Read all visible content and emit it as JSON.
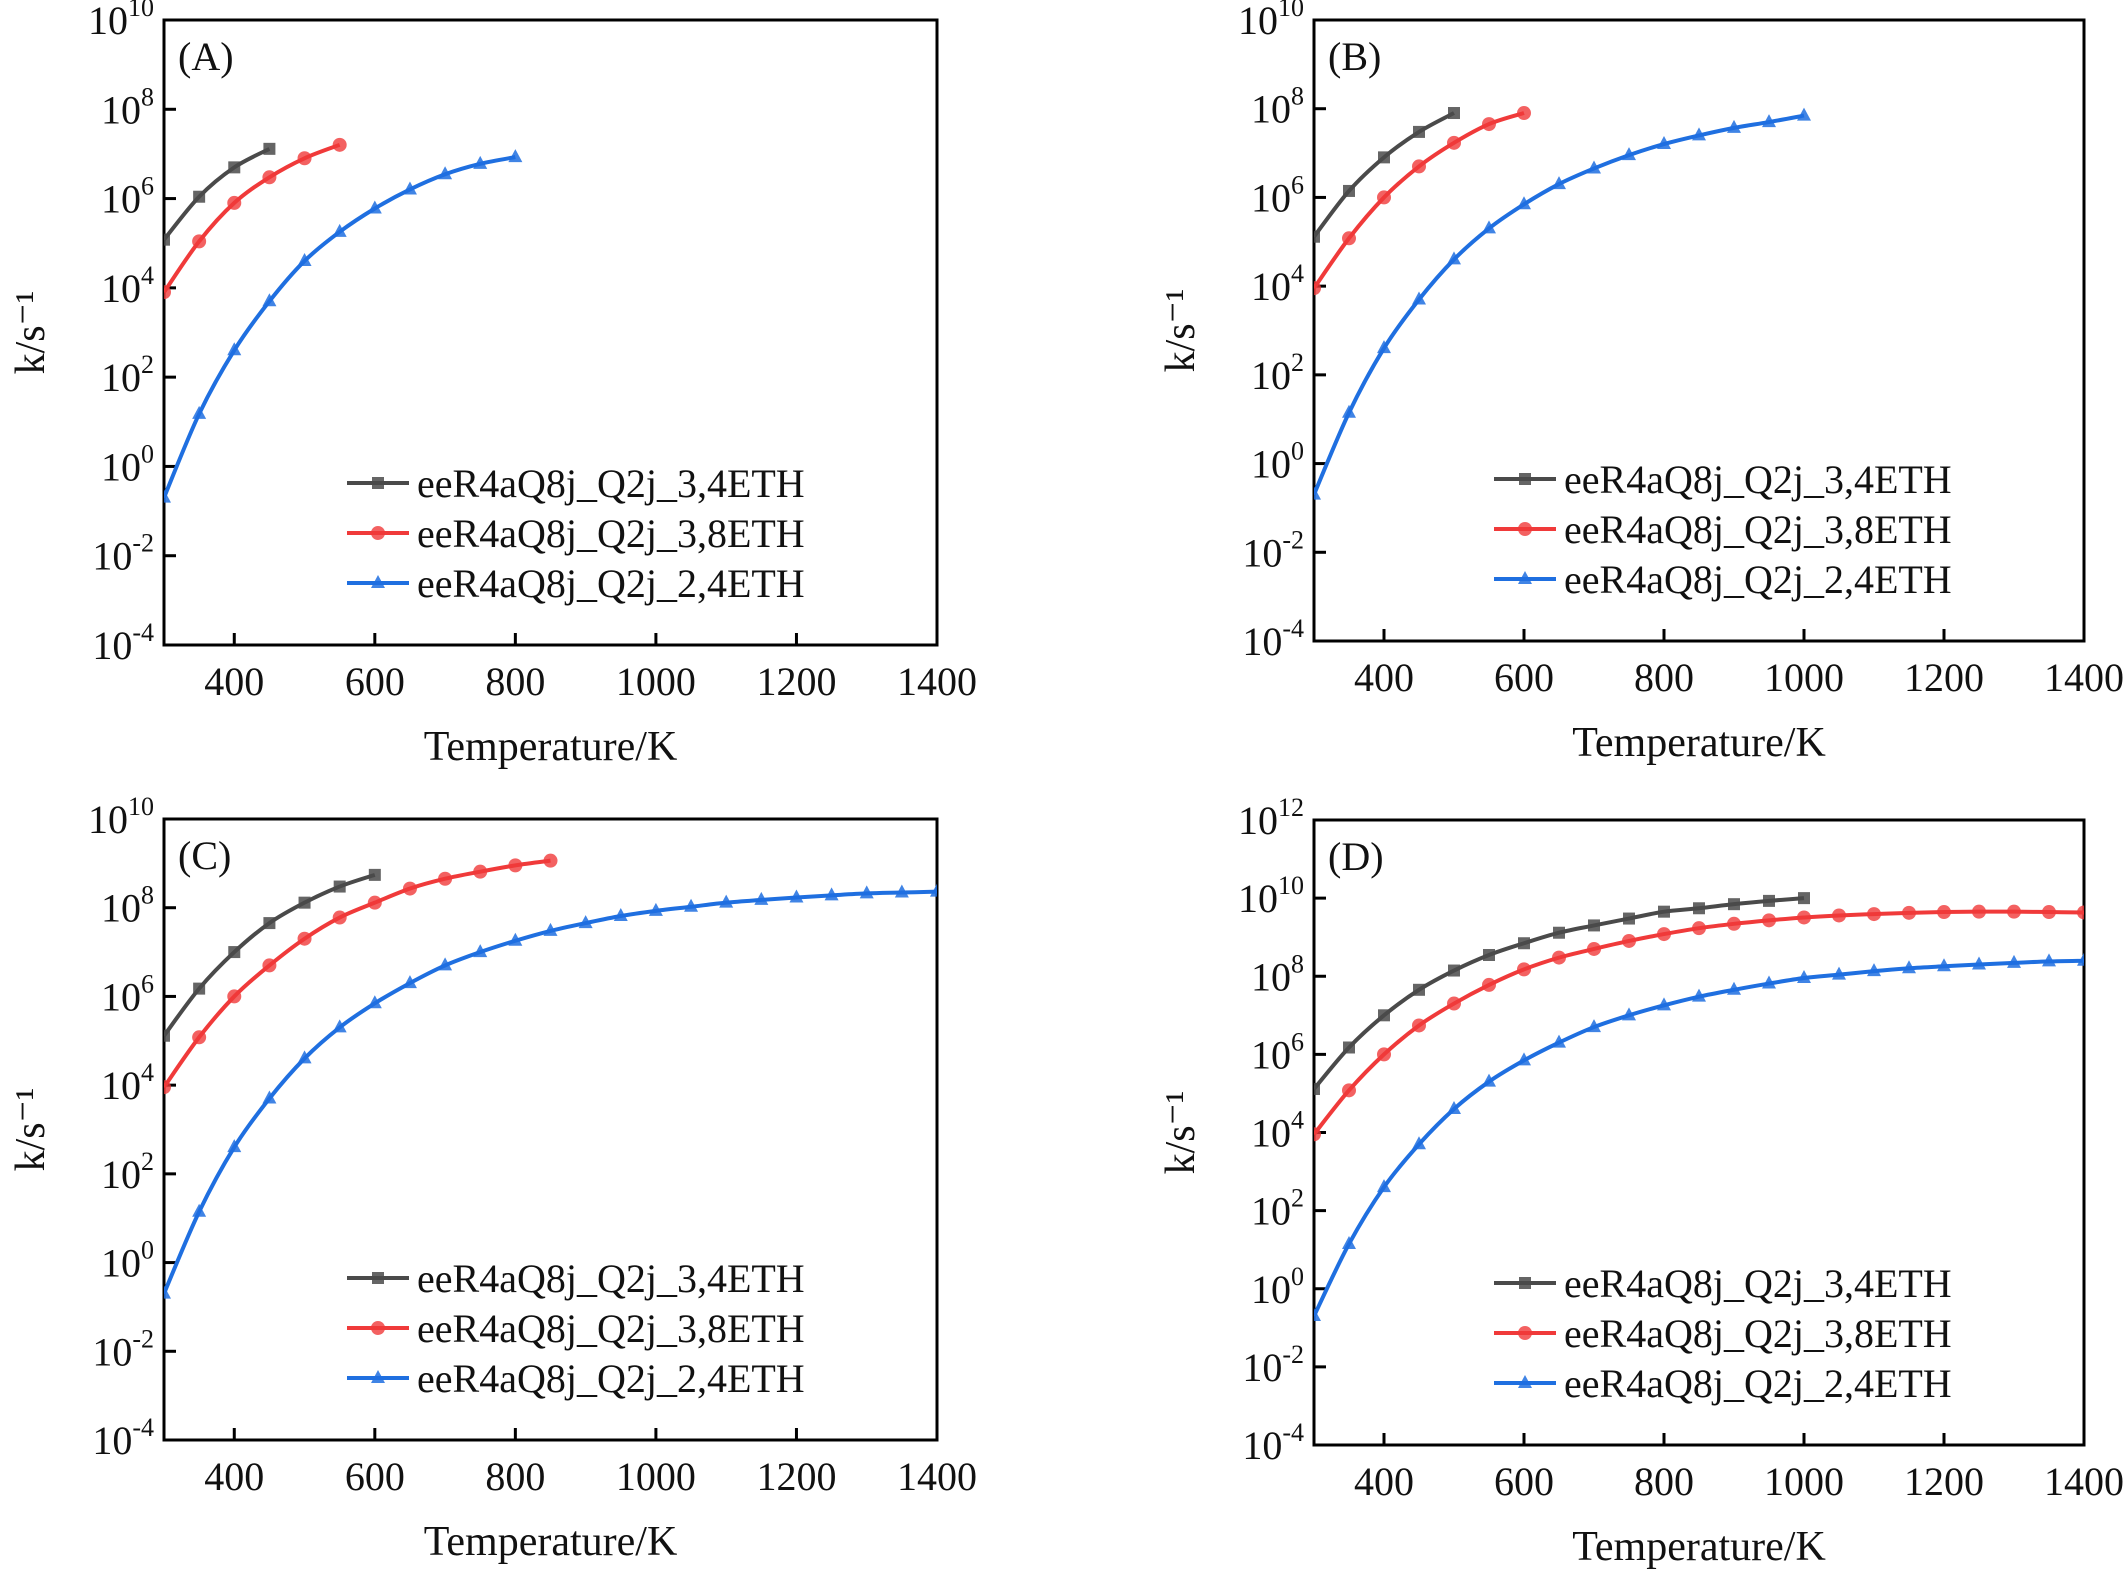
{
  "chart_data": [
    {
      "type": "line",
      "panel_label": "(A)",
      "xlabel": "Temperature/K",
      "ylabel": "k/s⁻¹",
      "xlim": [
        300,
        1400
      ],
      "ylim": [
        0.0001,
        10000000000.0
      ],
      "yscale": "log",
      "xticks": [
        400,
        600,
        800,
        1000,
        1200,
        1400
      ],
      "yticks_exp": [
        -4,
        -2,
        0,
        2,
        4,
        6,
        8,
        10
      ],
      "grid": false,
      "legend": "bottom-right",
      "series": [
        {
          "name": "eeR4aQ8j_Q2j_3,4ETH",
          "color": "#4a4a4a",
          "marker": "square",
          "x": [
            300,
            350,
            400,
            450
          ],
          "y": [
            120000.0,
            1100000.0,
            5000000.0,
            13000000.0
          ]
        },
        {
          "name": "eeR4aQ8j_Q2j_3,8ETH",
          "color": "#f03a3a",
          "marker": "circle",
          "x": [
            300,
            350,
            400,
            450,
            500,
            550
          ],
          "y": [
            8000.0,
            110000.0,
            800000.0,
            3000000.0,
            8000000.0,
            16000000.0
          ]
        },
        {
          "name": "eeR4aQ8j_Q2j_2,4ETH",
          "color": "#1f6fe0",
          "marker": "triangle",
          "x": [
            300,
            350,
            400,
            450,
            500,
            550,
            600,
            650,
            700,
            750,
            800
          ],
          "y": [
            0.2,
            15,
            400,
            5000.0,
            40000.0,
            180000.0,
            600000.0,
            1600000.0,
            3500000.0,
            6000000.0,
            8500000.0
          ]
        }
      ]
    },
    {
      "type": "line",
      "panel_label": "(B)",
      "xlabel": "Temperature/K",
      "ylabel": "k/s⁻¹",
      "xlim": [
        300,
        1400
      ],
      "ylim": [
        0.0001,
        10000000000.0
      ],
      "yscale": "log",
      "xticks": [
        400,
        600,
        800,
        1000,
        1200,
        1400
      ],
      "yticks_exp": [
        -4,
        -2,
        0,
        2,
        4,
        6,
        8,
        10
      ],
      "grid": false,
      "legend": "bottom-right",
      "series": [
        {
          "name": "eeR4aQ8j_Q2j_3,4ETH",
          "color": "#4a4a4a",
          "marker": "square",
          "x": [
            300,
            350,
            400,
            450,
            500
          ],
          "y": [
            130000.0,
            1400000.0,
            8000000.0,
            30000000.0,
            80000000.0
          ]
        },
        {
          "name": "eeR4aQ8j_Q2j_3,8ETH",
          "color": "#f03a3a",
          "marker": "circle",
          "x": [
            300,
            350,
            400,
            450,
            500,
            550,
            600
          ],
          "y": [
            9000.0,
            120000.0,
            1000000.0,
            5000000.0,
            17000000.0,
            45000000.0,
            80000000.0
          ]
        },
        {
          "name": "eeR4aQ8j_Q2j_2,4ETH",
          "color": "#1f6fe0",
          "marker": "triangle",
          "x": [
            300,
            350,
            400,
            450,
            500,
            550,
            600,
            650,
            700,
            750,
            800,
            850,
            900,
            950,
            1000
          ],
          "y": [
            0.2,
            14,
            400,
            5000.0,
            40000.0,
            200000.0,
            700000.0,
            2000000.0,
            4500000.0,
            9000000.0,
            16000000.0,
            25000000.0,
            37000000.0,
            50000000.0,
            70000000.0
          ]
        }
      ]
    },
    {
      "type": "line",
      "panel_label": "(C)",
      "xlabel": "Temperature/K",
      "ylabel": "k/s⁻¹",
      "xlim": [
        300,
        1400
      ],
      "ylim": [
        0.0001,
        10000000000.0
      ],
      "yscale": "log",
      "xticks": [
        400,
        600,
        800,
        1000,
        1200,
        1400
      ],
      "yticks_exp": [
        -4,
        -2,
        0,
        2,
        4,
        6,
        8,
        10
      ],
      "grid": false,
      "legend": "bottom-right",
      "series": [
        {
          "name": "eeR4aQ8j_Q2j_3,4ETH",
          "color": "#4a4a4a",
          "marker": "square",
          "x": [
            300,
            350,
            400,
            450,
            500,
            550,
            600
          ],
          "y": [
            130000.0,
            1500000.0,
            10000000.0,
            45000000.0,
            130000000.0,
            300000000.0,
            550000000.0
          ]
        },
        {
          "name": "eeR4aQ8j_Q2j_3,8ETH",
          "color": "#f03a3a",
          "marker": "circle",
          "x": [
            300,
            350,
            400,
            450,
            500,
            550,
            600,
            650,
            700,
            750,
            800,
            850
          ],
          "y": [
            9000.0,
            120000.0,
            1000000.0,
            5000000.0,
            20000000.0,
            60000000.0,
            130000000.0,
            270000000.0,
            450000000.0,
            650000000.0,
            900000000.0,
            1150000000.0
          ]
        },
        {
          "name": "eeR4aQ8j_Q2j_2,4ETH",
          "color": "#1f6fe0",
          "marker": "triangle",
          "x": [
            300,
            350,
            400,
            450,
            500,
            550,
            600,
            650,
            700,
            750,
            800,
            850,
            900,
            950,
            1000,
            1050,
            1100,
            1150,
            1200,
            1250,
            1300,
            1350,
            1400
          ],
          "y": [
            0.2,
            14,
            400,
            5000.0,
            40000.0,
            200000.0,
            700000.0,
            2000000.0,
            5000000.0,
            10000000.0,
            18000000.0,
            30000000.0,
            45000000.0,
            65000000.0,
            85000000.0,
            105000000.0,
            130000000.0,
            150000000.0,
            170000000.0,
            190000000.0,
            210000000.0,
            220000000.0,
            230000000.0
          ]
        }
      ]
    },
    {
      "type": "line",
      "panel_label": "(D)",
      "xlabel": "Temperature/K",
      "ylabel": "k/s⁻¹",
      "xlim": [
        300,
        1400
      ],
      "ylim": [
        0.0001,
        1000000000000.0
      ],
      "yscale": "log",
      "xticks": [
        400,
        600,
        800,
        1000,
        1200,
        1400
      ],
      "yticks_exp": [
        -4,
        -2,
        0,
        2,
        4,
        6,
        8,
        10,
        12
      ],
      "grid": false,
      "legend": "bottom-right",
      "series": [
        {
          "name": "eeR4aQ8j_Q2j_3,4ETH",
          "color": "#4a4a4a",
          "marker": "square",
          "x": [
            300,
            350,
            400,
            450,
            500,
            550,
            600,
            650,
            700,
            750,
            800,
            850,
            900,
            950,
            1000
          ],
          "y": [
            130000.0,
            1500000.0,
            10000000.0,
            45000000.0,
            140000000.0,
            350000000.0,
            700000000.0,
            1300000000.0,
            2000000000.0,
            3000000000.0,
            4500000000.0,
            5500000000.0,
            7000000000.0,
            8500000000.0,
            10000000000.0
          ]
        },
        {
          "name": "eeR4aQ8j_Q2j_3,8ETH",
          "color": "#f03a3a",
          "marker": "circle",
          "x": [
            300,
            350,
            400,
            450,
            500,
            550,
            600,
            650,
            700,
            750,
            800,
            850,
            900,
            950,
            1000,
            1050,
            1100,
            1150,
            1200,
            1250,
            1300,
            1350,
            1400
          ],
          "y": [
            9000.0,
            120000.0,
            1000000.0,
            5500000.0,
            20000000.0,
            60000000.0,
            150000000.0,
            300000000.0,
            500000000.0,
            800000000.0,
            1200000000.0,
            1700000000.0,
            2200000000.0,
            2700000000.0,
            3200000000.0,
            3600000000.0,
            3900000000.0,
            4200000000.0,
            4400000000.0,
            4500000000.0,
            4500000000.0,
            4400000000.0,
            4300000000.0
          ]
        },
        {
          "name": "eeR4aQ8j_Q2j_2,4ETH",
          "color": "#1f6fe0",
          "marker": "triangle",
          "x": [
            300,
            350,
            400,
            450,
            500,
            550,
            600,
            650,
            700,
            750,
            800,
            850,
            900,
            950,
            1000,
            1050,
            1100,
            1150,
            1200,
            1250,
            1300,
            1350,
            1400
          ],
          "y": [
            0.2,
            14,
            400,
            5000.0,
            40000.0,
            200000.0,
            700000.0,
            2000000.0,
            5000000.0,
            10000000.0,
            18000000.0,
            30000000.0,
            45000000.0,
            65000000.0,
            90000000.0,
            110000000.0,
            135000000.0,
            160000000.0,
            180000000.0,
            200000000.0,
            220000000.0,
            240000000.0,
            250000000.0
          ]
        }
      ]
    }
  ]
}
